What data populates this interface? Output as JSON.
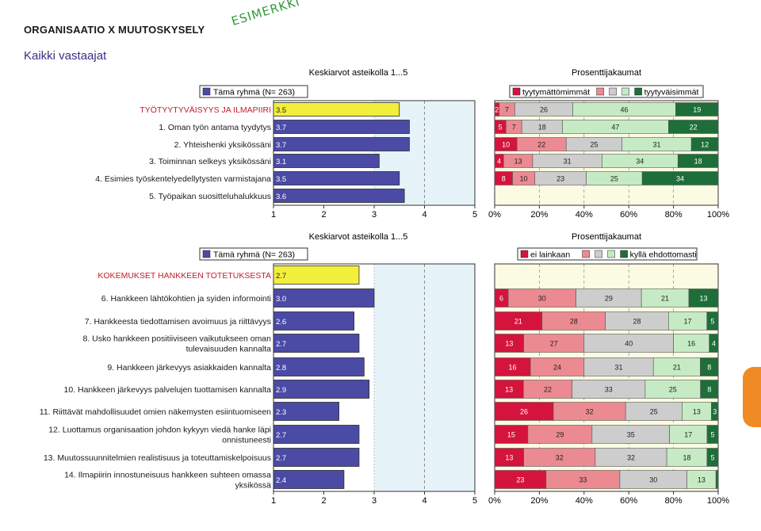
{
  "page": {
    "title": "ORGANISAATIO X MUUTOSKYSELY",
    "stamp": "ESIMERKKI",
    "subtitle": "Kaikki vastaajat"
  },
  "colors": {
    "bar_blue": "#4b4ba6",
    "bar_yellow": "#f2ee3c",
    "plot_bg_left": "#e6f4fa",
    "plot_bg_right": "#fbfbe3",
    "heading_red": "#c0202a",
    "seg": [
      "#d4143c",
      "#ec8a92",
      "#cdcdcd",
      "#c6ebc4",
      "#1e6e3a"
    ],
    "accent_orange": "#f08a24"
  },
  "chart_data": [
    {
      "type": "bar",
      "orientation": "horizontal",
      "title": "Keskiarvot asteikolla 1...5",
      "legend": "Tämä ryhmä (N= 263)",
      "categories": [
        "TYÖTYYTYVÄISYYS JA ILMAPIIRI",
        "1. Oman työn antama tyydytys",
        "2. Yhteishenki yksikössäni",
        "3. Toiminnan selkeys yksikössäni",
        "4. Esimies työskentelyedellytysten varmistajana",
        "5. Työpaikan suositteluhalukkuus"
      ],
      "values": [
        3.5,
        3.7,
        3.7,
        3.1,
        3.5,
        3.6
      ],
      "value_labels": [
        "3.5",
        "3.7",
        "3.7",
        "3.1",
        "3.5",
        "3.6"
      ],
      "xlim": [
        1,
        5
      ],
      "xticks": [
        "1",
        "2",
        "3",
        "4",
        "5"
      ]
    },
    {
      "type": "bar",
      "orientation": "horizontal",
      "stacked": true,
      "title": "Prosenttijakaumat",
      "legend": [
        "tyytymättömimmät",
        "",
        "",
        "",
        "tyytyväisimmät"
      ],
      "series_values": [
        [
          2,
          7,
          26,
          46,
          19
        ],
        [
          5,
          7,
          18,
          47,
          22
        ],
        [
          10,
          22,
          25,
          31,
          12
        ],
        [
          4,
          13,
          31,
          34,
          18
        ],
        [
          8,
          10,
          23,
          25,
          34
        ]
      ],
      "xlim": [
        0,
        100
      ],
      "xticks": [
        "0%",
        "20%",
        "40%",
        "60%",
        "80%",
        "100%"
      ]
    },
    {
      "type": "bar",
      "orientation": "horizontal",
      "title": "Keskiarvot asteikolla 1...5",
      "legend": "Tämä ryhmä (N= 263)",
      "categories": [
        [
          "KOKEMUKSET HANKKEEN TOTETUKSESTA"
        ],
        [
          "6. Hankkeen lähtökohtien ja syiden informointi"
        ],
        [
          "7. Hankkeesta tiedottamisen avoimuus ja riittävyys"
        ],
        [
          "8. Usko hankkeen positiiviseen vaikutukseen oman",
          "tulevaisuuden kannalta"
        ],
        [
          "9. Hankkeen järkevyys asiakkaiden kannalta"
        ],
        [
          "10. Hankkeen järkevyys palvelujen tuottamisen kannalta"
        ],
        [
          "11. Riittävät mahdollisuudet omien näkemysten esiintuomiseen"
        ],
        [
          "12. Luottamus organisaation johdon kykyyn viedä hanke läpi",
          "onnistuneesti"
        ],
        [
          "13. Muutossuunnitelmien realistisuus ja toteuttamiskelpoisuus"
        ],
        [
          "14. Ilmapiirin innostuneisuus hankkeen suhteen omassa",
          "yksikössä"
        ]
      ],
      "values": [
        2.7,
        3.0,
        2.6,
        2.7,
        2.8,
        2.9,
        2.3,
        2.7,
        2.7,
        2.4
      ],
      "value_labels": [
        "2.7",
        "3.0",
        "2.6",
        "2.7",
        "2.8",
        "2.9",
        "2.3",
        "2.7",
        "2.7",
        "2.4"
      ],
      "xlim": [
        1,
        5
      ],
      "xticks": [
        "1",
        "2",
        "3",
        "4",
        "5"
      ]
    },
    {
      "type": "bar",
      "orientation": "horizontal",
      "stacked": true,
      "title": "Prosenttijakaumat",
      "legend": [
        "ei lainkaan",
        "",
        "",
        "",
        "kyllä ehdottomasti"
      ],
      "series_values": [
        [
          6,
          30,
          29,
          21,
          13
        ],
        [
          21,
          28,
          28,
          17,
          5
        ],
        [
          13,
          27,
          40,
          16,
          4
        ],
        [
          16,
          24,
          31,
          21,
          8
        ],
        [
          13,
          22,
          33,
          25,
          8
        ],
        [
          26,
          32,
          25,
          13,
          3
        ],
        [
          15,
          29,
          35,
          17,
          5
        ],
        [
          13,
          32,
          32,
          18,
          5
        ],
        [
          23,
          33,
          30,
          13,
          1
        ]
      ],
      "xlim": [
        0,
        100
      ],
      "xticks": [
        "0%",
        "20%",
        "40%",
        "60%",
        "80%",
        "100%"
      ]
    }
  ]
}
